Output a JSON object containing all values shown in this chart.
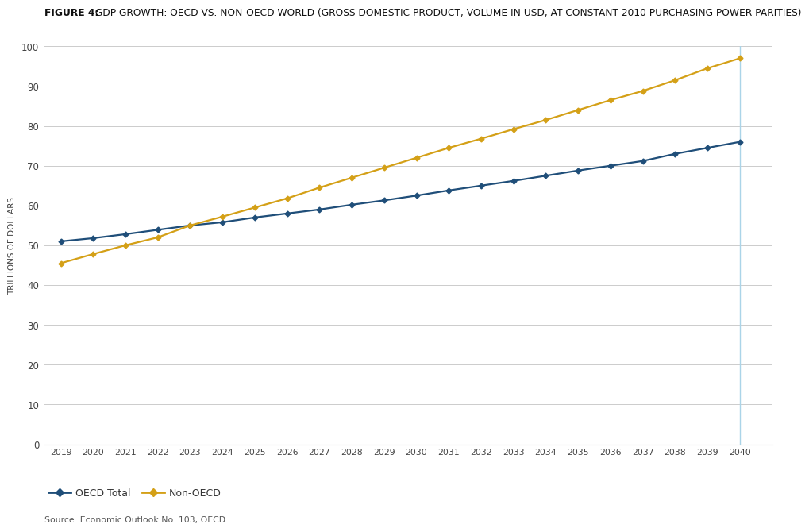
{
  "title_bold": "FIGURE 4:",
  "title_regular": " GDP GROWTH: OECD VS. NON-OECD WORLD (GROSS DOMESTIC PRODUCT, VOLUME IN USD, AT CONSTANT 2010 PURCHASING POWER PARITIES)",
  "ylabel": "TRILLIONS OF DOLLARS",
  "source": "Source: Economic Outlook No. 103, OECD",
  "years": [
    2019,
    2020,
    2021,
    2022,
    2023,
    2024,
    2025,
    2026,
    2027,
    2028,
    2029,
    2030,
    2031,
    2032,
    2033,
    2034,
    2035,
    2036,
    2037,
    2038,
    2039,
    2040
  ],
  "oecd": [
    51.0,
    51.8,
    52.8,
    53.9,
    55.0,
    55.8,
    57.0,
    58.0,
    59.0,
    60.2,
    61.3,
    62.5,
    63.8,
    65.0,
    66.2,
    67.5,
    68.8,
    70.0,
    71.2,
    73.0,
    74.5,
    76.0
  ],
  "non_oecd": [
    45.5,
    47.8,
    50.0,
    52.0,
    55.0,
    57.2,
    59.5,
    61.8,
    64.5,
    67.0,
    69.5,
    72.0,
    74.5,
    76.8,
    79.2,
    81.5,
    84.0,
    86.5,
    88.8,
    91.5,
    94.5,
    97.0
  ],
  "oecd_color": "#1f4e79",
  "non_oecd_color": "#d4a017",
  "vline_color": "#aad4e8",
  "grid_color": "#cccccc",
  "background_color": "#ffffff",
  "ylim": [
    0,
    100
  ],
  "yticks": [
    0,
    10,
    20,
    30,
    40,
    50,
    60,
    70,
    80,
    90,
    100
  ],
  "legend_oecd": "OECD Total",
  "legend_non_oecd": "Non-OECD",
  "marker": "D",
  "marker_size": 3.5,
  "linewidth": 1.6
}
